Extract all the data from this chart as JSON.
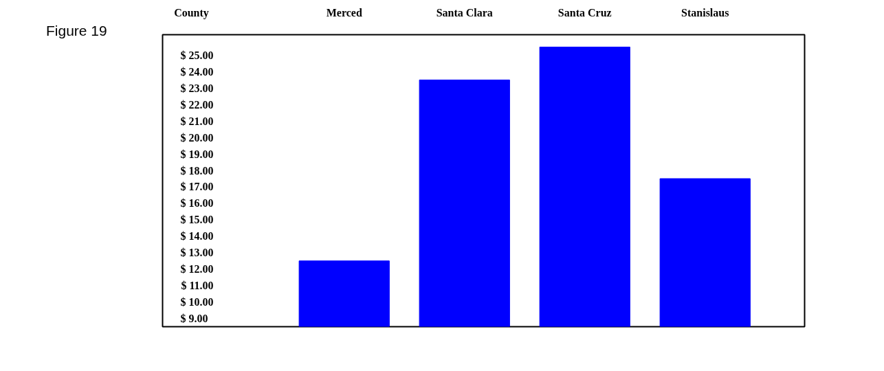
{
  "chart_data": {
    "type": "bar",
    "xlabel": "County",
    "categories": [
      "Merced",
      "Santa Clara",
      "Santa Cruz",
      "Stanislaus"
    ],
    "values": [
      12.5,
      23.5,
      25.5,
      17.5
    ],
    "color": "#0000ff",
    "ylim": [
      8.5,
      26.25
    ],
    "yticks": [
      {
        "value": 9,
        "label": "$   9.00"
      },
      {
        "value": 10,
        "label": "$ 10.00"
      },
      {
        "value": 11,
        "label": "$ 11.00"
      },
      {
        "value": 12,
        "label": "$ 12.00"
      },
      {
        "value": 13,
        "label": "$ 13.00"
      },
      {
        "value": 14,
        "label": "$ 14.00"
      },
      {
        "value": 15,
        "label": "$ 15.00"
      },
      {
        "value": 16,
        "label": "$ 16.00"
      },
      {
        "value": 17,
        "label": "$ 17.00"
      },
      {
        "value": 18,
        "label": "$ 18.00"
      },
      {
        "value": 19,
        "label": "$ 19.00"
      },
      {
        "value": 20,
        "label": "$ 20.00"
      },
      {
        "value": 21,
        "label": "$ 21.00"
      },
      {
        "value": 22,
        "label": "$ 22.00"
      },
      {
        "value": 23,
        "label": "$ 23.00"
      },
      {
        "value": 24,
        "label": "$ 24.00"
      },
      {
        "value": 25,
        "label": "$ 25.00"
      }
    ],
    "annotations": [
      "Figure 19"
    ]
  }
}
